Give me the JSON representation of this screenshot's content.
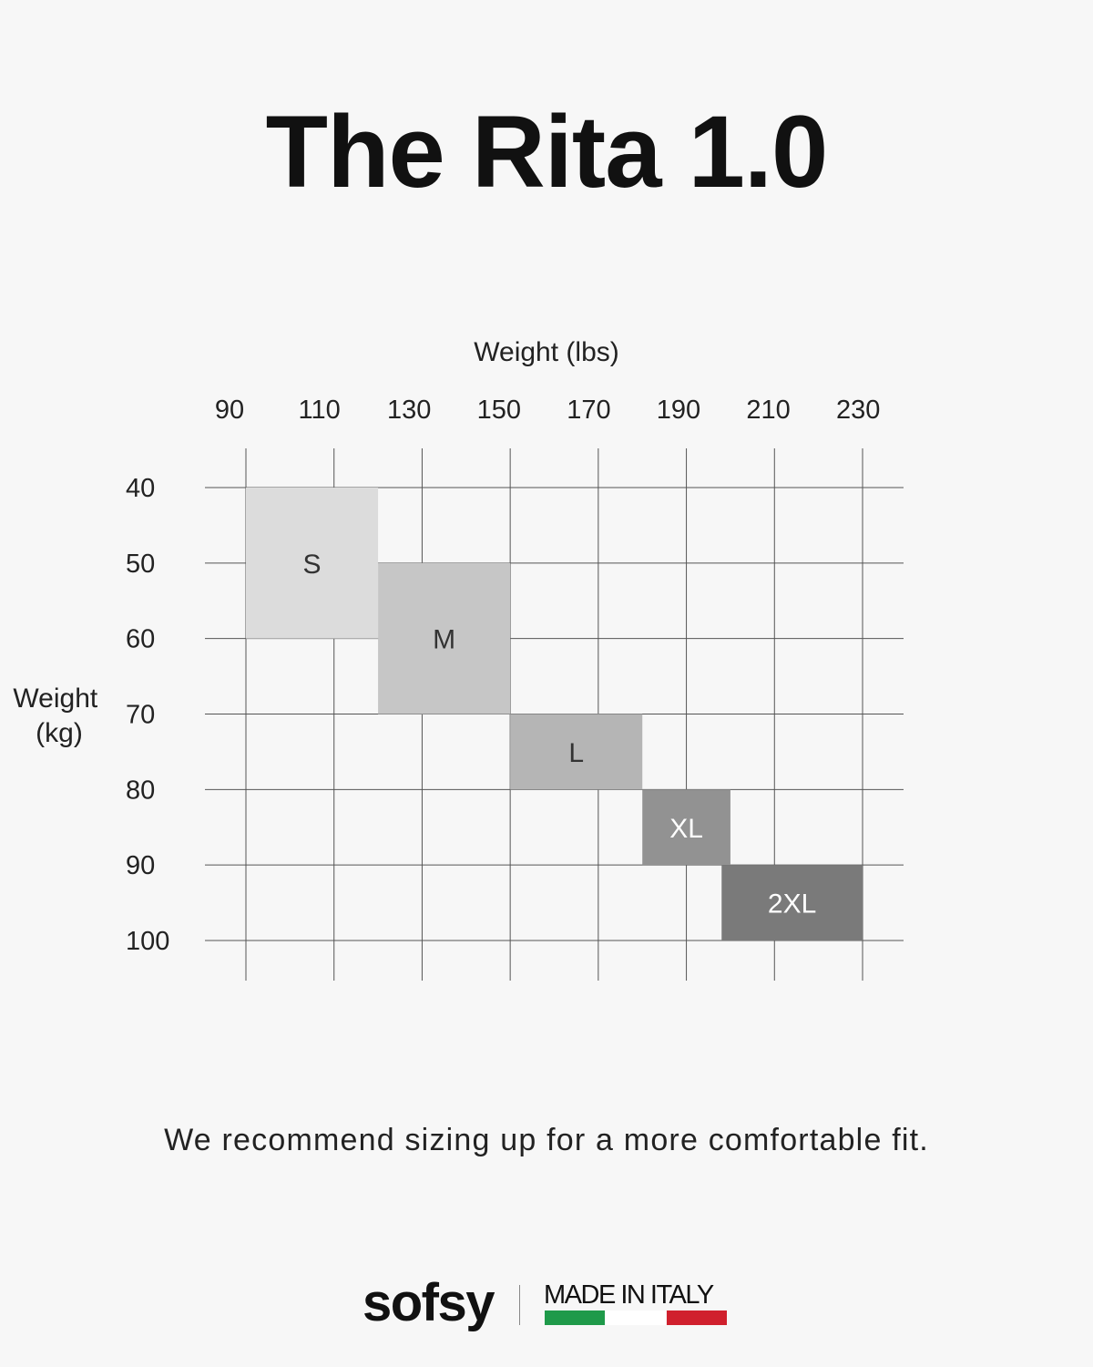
{
  "title": "The Rita 1.0",
  "chart_data": {
    "type": "heatmap",
    "xlabel": "Weight (lbs)",
    "ylabel": [
      "Weight",
      "(kg)"
    ],
    "x_ticks": [
      90,
      110,
      130,
      150,
      170,
      190,
      210,
      230
    ],
    "y_ticks": [
      40,
      50,
      60,
      70,
      80,
      90,
      100
    ],
    "xlim": [
      90,
      230
    ],
    "ylim": [
      40,
      100
    ],
    "grid": true,
    "sizes": [
      {
        "label": "S",
        "x": [
          90,
          120
        ],
        "y": [
          40,
          60
        ],
        "color": "#dcdcdc",
        "text_color": "#333333"
      },
      {
        "label": "M",
        "x": [
          120,
          150
        ],
        "y": [
          50,
          70
        ],
        "color": "#c6c6c6",
        "text_color": "#333333"
      },
      {
        "label": "L",
        "x": [
          150,
          180
        ],
        "y": [
          70,
          80
        ],
        "color": "#b5b5b5",
        "text_color": "#333333"
      },
      {
        "label": "XL",
        "x": [
          180,
          200
        ],
        "y": [
          80,
          90
        ],
        "color": "#929292",
        "text_color": "#ffffff"
      },
      {
        "label": "2XL",
        "x": [
          198,
          230
        ],
        "y": [
          90,
          100
        ],
        "color": "#7a7a7a",
        "text_color": "#ffffff"
      }
    ]
  },
  "recommendation": "We recommend sizing up for a more comfortable fit.",
  "footer": {
    "brand": "sofsy",
    "made_in": "MADE IN ITALY",
    "flag_colors": [
      "#1f9a4a",
      "#ffffff",
      "#d0202d"
    ]
  }
}
